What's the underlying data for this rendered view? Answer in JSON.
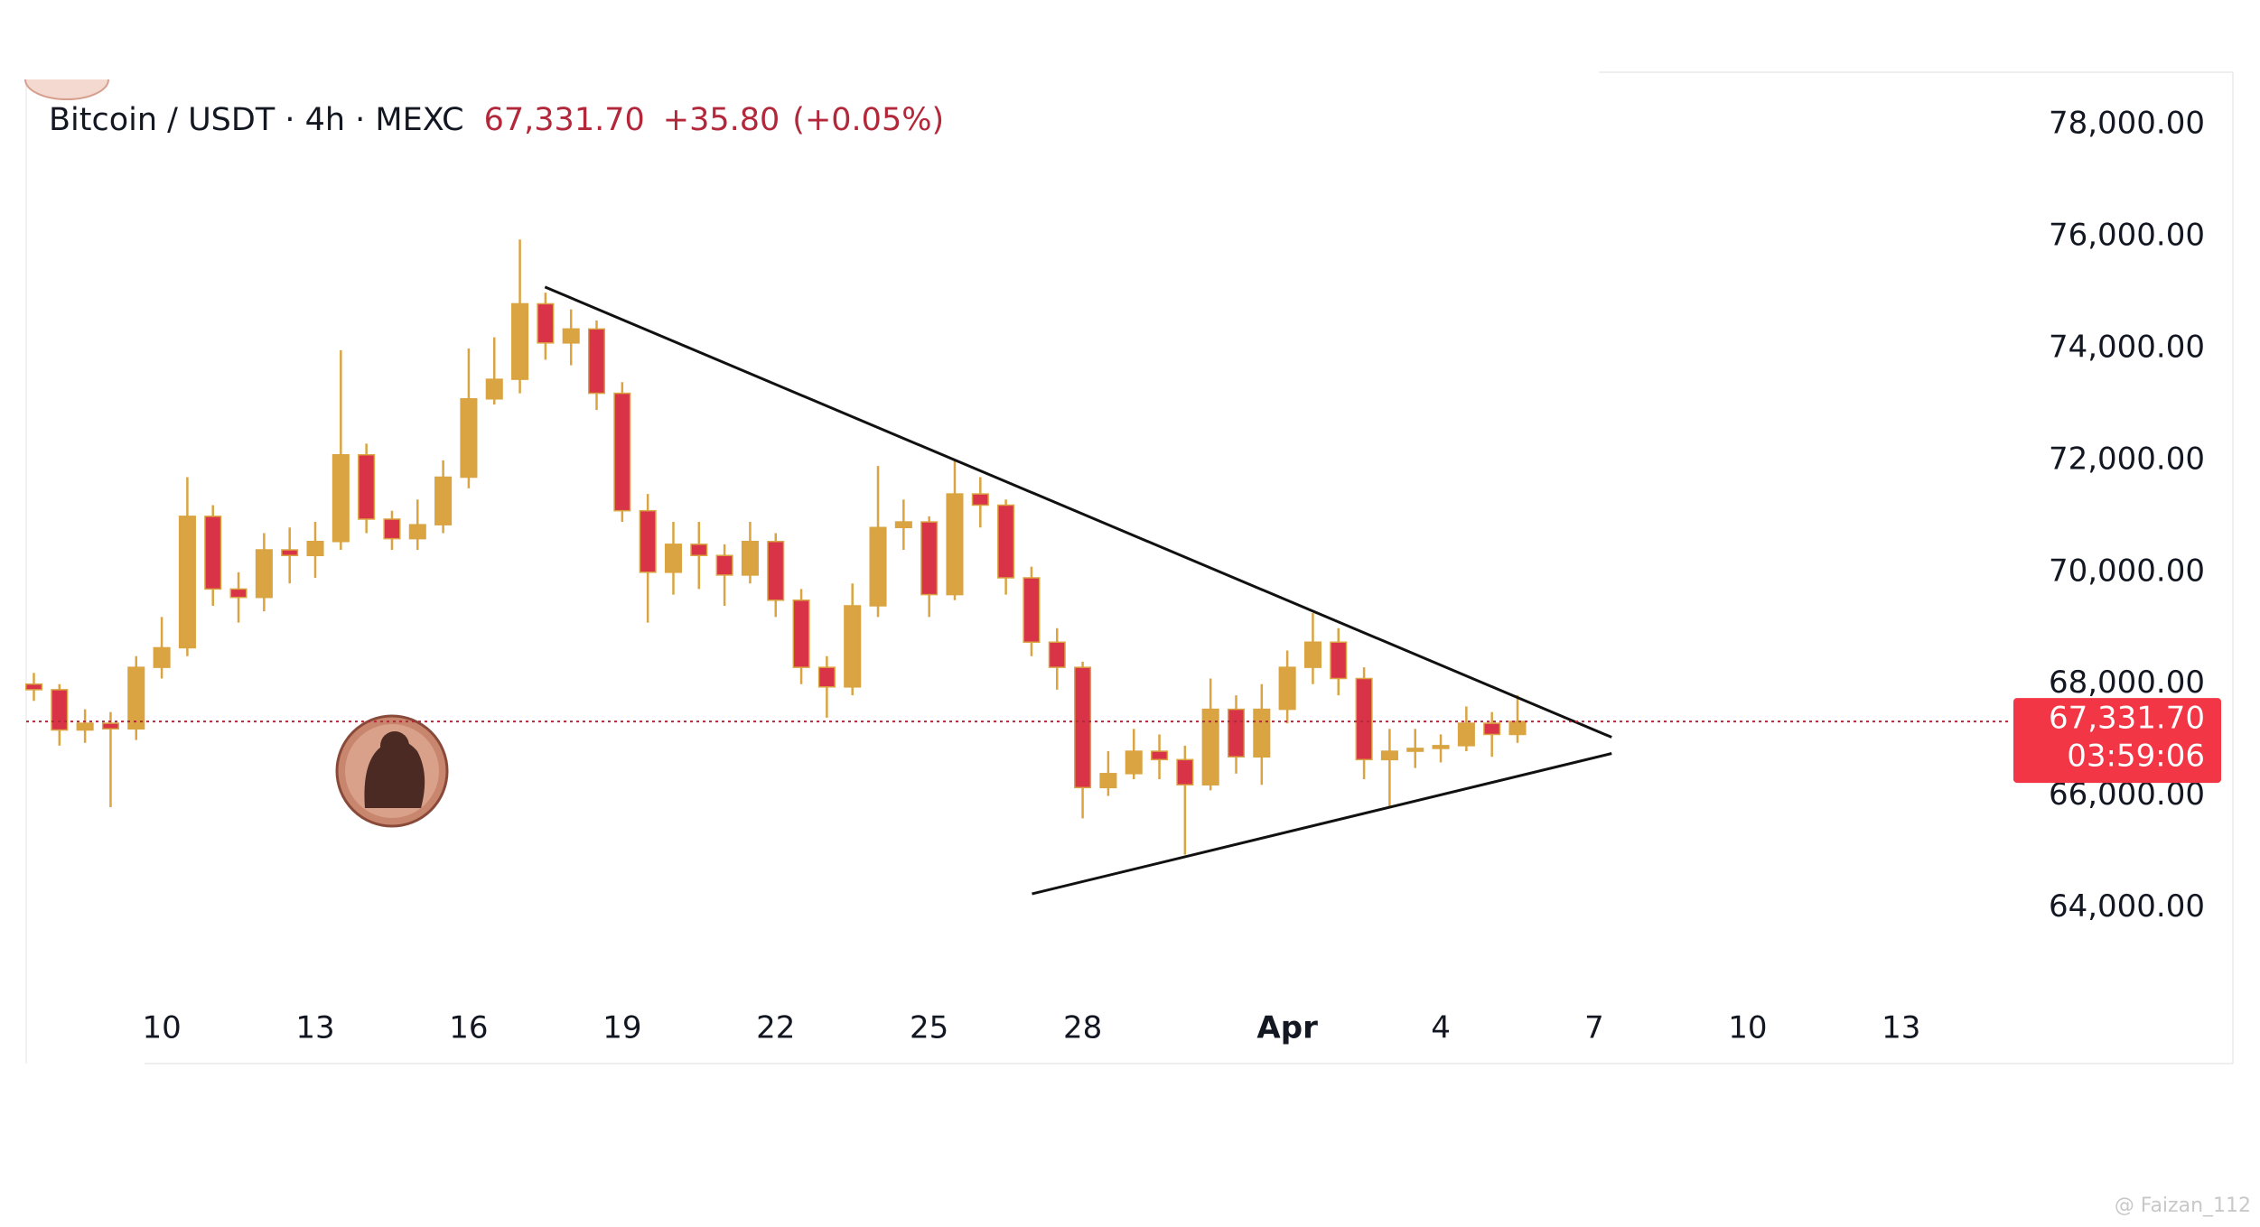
{
  "chart_data": {
    "type": "candlestick",
    "title": "Bitcoin / USDT · 4h · MEXC",
    "last_price": 67331.7,
    "last_price_label": "67,331.70",
    "change_label": "+35.80",
    "change_pct_label": "(+0.05%)",
    "countdown": "03:59:06",
    "watermark": "@ Faizan_112",
    "colors": {
      "up": "#d9a441",
      "down": "#d83347",
      "last": "#f23645",
      "header": "#b2283a",
      "trend": "#111111"
    },
    "grid": false,
    "xlim": [
      7.35,
      46.14
    ],
    "ylim": [
      62200,
      78940
    ],
    "xticks": [
      10,
      13,
      16,
      19,
      22,
      25,
      28,
      {
        "value": 32,
        "label": "Apr"
      },
      {
        "value": 35,
        "label": "4"
      },
      {
        "value": 38,
        "label": "7"
      },
      {
        "value": 41,
        "label": "10"
      },
      {
        "value": 44,
        "label": "13"
      }
    ],
    "yticks": [
      {
        "value": 64000,
        "label": "64,000.00"
      },
      {
        "value": 66000,
        "label": "66,000.00"
      },
      {
        "value": 68000,
        "label": "68,000.00"
      },
      {
        "value": 70000,
        "label": "70,000.00"
      },
      {
        "value": 72000,
        "label": "72,000.00"
      },
      {
        "value": 74000,
        "label": "74,000.00"
      },
      {
        "value": 76000,
        "label": "76,000.00"
      },
      {
        "value": 78000,
        "label": "78,000.00"
      }
    ],
    "x": [
      7.5,
      8,
      8.5,
      9,
      9.5,
      10,
      10.5,
      11,
      11.5,
      12,
      12.5,
      13,
      13.5,
      14,
      14.5,
      15,
      15.5,
      16,
      16.5,
      17,
      17.5,
      18,
      18.5,
      19,
      19.5,
      20,
      20.5,
      21,
      21.5,
      22,
      22.5,
      23,
      23.5,
      24,
      24.5,
      25,
      25.5,
      26,
      26.5,
      27,
      27.5,
      28,
      28.5,
      29,
      29.5,
      30,
      30.5,
      31,
      31.5,
      32,
      32.5,
      33,
      33.5,
      34,
      34.5,
      35,
      35.5,
      36,
      36.5
    ],
    "open": [
      68000,
      67900,
      67180,
      67300,
      67200,
      68300,
      68650,
      71000,
      69700,
      69550,
      70400,
      70300,
      70550,
      72100,
      70950,
      70600,
      70850,
      71700,
      73100,
      73450,
      74800,
      74100,
      74350,
      73200,
      71100,
      70000,
      70500,
      70300,
      69950,
      70550,
      69500,
      68300,
      67950,
      69400,
      70800,
      70900,
      69600,
      71400,
      71200,
      69900,
      68750,
      68300,
      66150,
      66400,
      66800,
      66650,
      66200,
      67550,
      66700,
      67550,
      68300,
      68750,
      68100,
      66650,
      66800,
      66850,
      66900,
      67300,
      67100
    ],
    "high": [
      68200,
      68000,
      67550,
      67500,
      68500,
      69200,
      71700,
      71200,
      70000,
      70700,
      70800,
      70900,
      73970,
      72300,
      71100,
      71300,
      72000,
      74000,
      74200,
      75950,
      75000,
      74700,
      74500,
      73400,
      71400,
      70900,
      70900,
      70500,
      70900,
      70700,
      69700,
      68500,
      69800,
      71900,
      71300,
      71000,
      72000,
      71700,
      71300,
      70100,
      69000,
      68400,
      66800,
      67200,
      67100,
      66900,
      68100,
      67800,
      68000,
      68600,
      69270,
      69000,
      68300,
      67200,
      67200,
      67100,
      67600,
      67500,
      67800
    ],
    "low": [
      67700,
      66900,
      66950,
      65800,
      67000,
      68100,
      68500,
      69400,
      69100,
      69300,
      69800,
      69900,
      70400,
      70700,
      70400,
      70400,
      70700,
      71500,
      73000,
      73200,
      73800,
      73700,
      72900,
      70900,
      69100,
      69600,
      69700,
      69400,
      69800,
      69200,
      68000,
      67400,
      67800,
      69200,
      70400,
      69200,
      69500,
      70800,
      69600,
      68500,
      67900,
      65600,
      66000,
      66300,
      66300,
      64950,
      66100,
      66400,
      66200,
      67300,
      68000,
      67800,
      66300,
      65800,
      66500,
      66600,
      66800,
      66700,
      66950
    ],
    "close": [
      67900,
      67180,
      67300,
      67200,
      68300,
      68650,
      71000,
      69700,
      69550,
      70400,
      70300,
      70550,
      72100,
      70950,
      70600,
      70850,
      71700,
      73100,
      73450,
      74800,
      74100,
      74350,
      73200,
      71100,
      70000,
      70500,
      70300,
      69950,
      70550,
      69500,
      68300,
      67950,
      69400,
      70800,
      70900,
      69600,
      71400,
      71200,
      69900,
      68750,
      68300,
      66150,
      66400,
      66800,
      66650,
      66200,
      67550,
      66700,
      67550,
      68300,
      68750,
      68100,
      66650,
      66800,
      66850,
      66900,
      67300,
      67100,
      67331.7
    ],
    "trendlines": [
      {
        "x": [
          17.49,
          38.34
        ],
        "y": [
          75100,
          67050
        ]
      },
      {
        "x": [
          27.01,
          38.34
        ],
        "y": [
          64250,
          66760
        ]
      }
    ]
  }
}
